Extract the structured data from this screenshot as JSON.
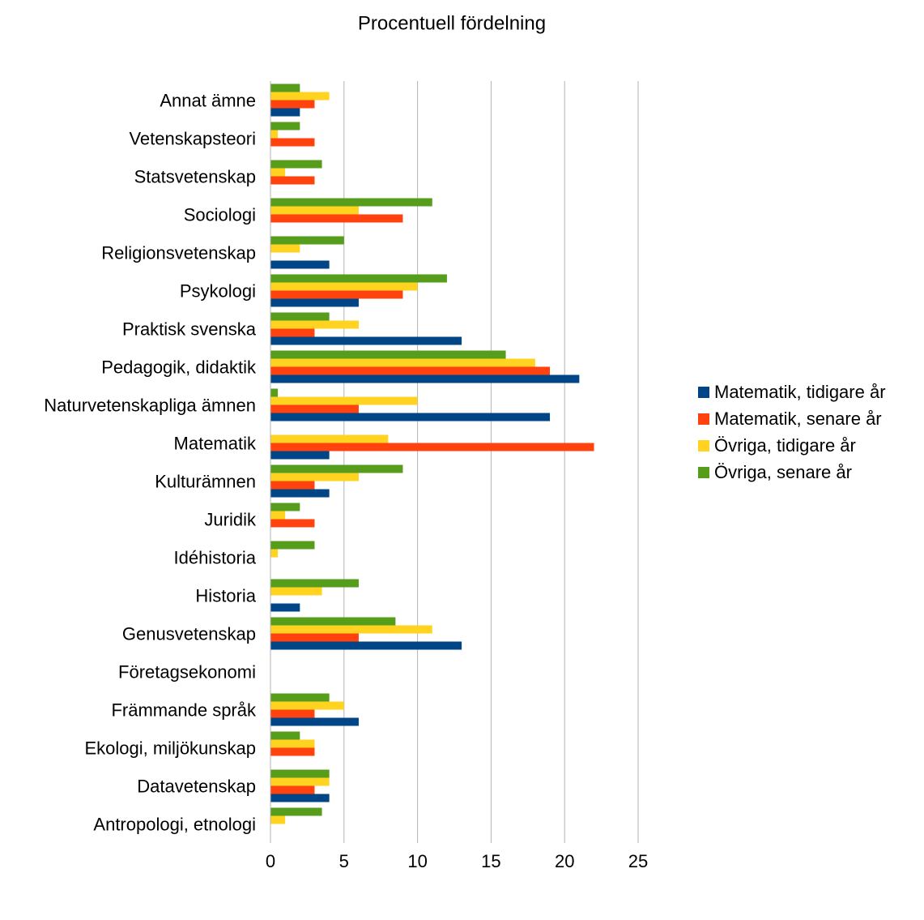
{
  "chart_data": {
    "type": "hbar",
    "title": "Procentuell fördelning",
    "categories": [
      "Annat ämne",
      "Vetenskapsteori",
      "Statsvetenskap",
      "Sociologi",
      "Religionsvetenskap",
      "Psykologi",
      "Praktisk svenska",
      "Pedagogik, didaktik",
      "Naturvetenskapliga ämnen",
      "Matematik",
      "Kulturämnen",
      "Juridik",
      "Idéhistoria",
      "Historia",
      "Genusvetenskap",
      "Företagsekonomi",
      "Främmande språk",
      "Ekologi, miljökunskap",
      "Datavetenskap",
      "Antropologi, etnologi"
    ],
    "series": [
      {
        "name": "Matematik, tidigare år",
        "color": "#004586",
        "values": [
          2,
          0,
          0,
          0,
          4,
          6,
          13,
          21,
          19,
          4,
          4,
          0,
          0,
          2,
          13,
          0,
          6,
          0,
          4,
          0
        ]
      },
      {
        "name": "Matematik, senare år",
        "color": "#ff420e",
        "values": [
          3,
          3,
          3,
          9,
          0,
          9,
          3,
          19,
          6,
          22,
          3,
          3,
          0,
          0,
          6,
          0,
          3,
          3,
          3,
          0
        ]
      },
      {
        "name": "Övriga, tidigare år",
        "color": "#ffd320",
        "values": [
          4,
          0.5,
          1,
          6,
          2,
          10,
          6,
          18,
          10,
          8,
          6,
          1,
          0.5,
          3.5,
          11,
          0,
          5,
          3,
          4,
          1
        ]
      },
      {
        "name": "Övriga, senare år",
        "color": "#579d1c",
        "values": [
          2,
          2,
          3.5,
          11,
          5,
          12,
          4,
          16,
          0.5,
          0,
          9,
          2,
          3,
          6,
          8.5,
          0,
          4,
          2,
          4,
          3.5
        ]
      }
    ],
    "xlim": [
      0,
      25
    ],
    "xticks": [
      0,
      5,
      10,
      15,
      20,
      25
    ],
    "grid": true,
    "legend": "right"
  }
}
